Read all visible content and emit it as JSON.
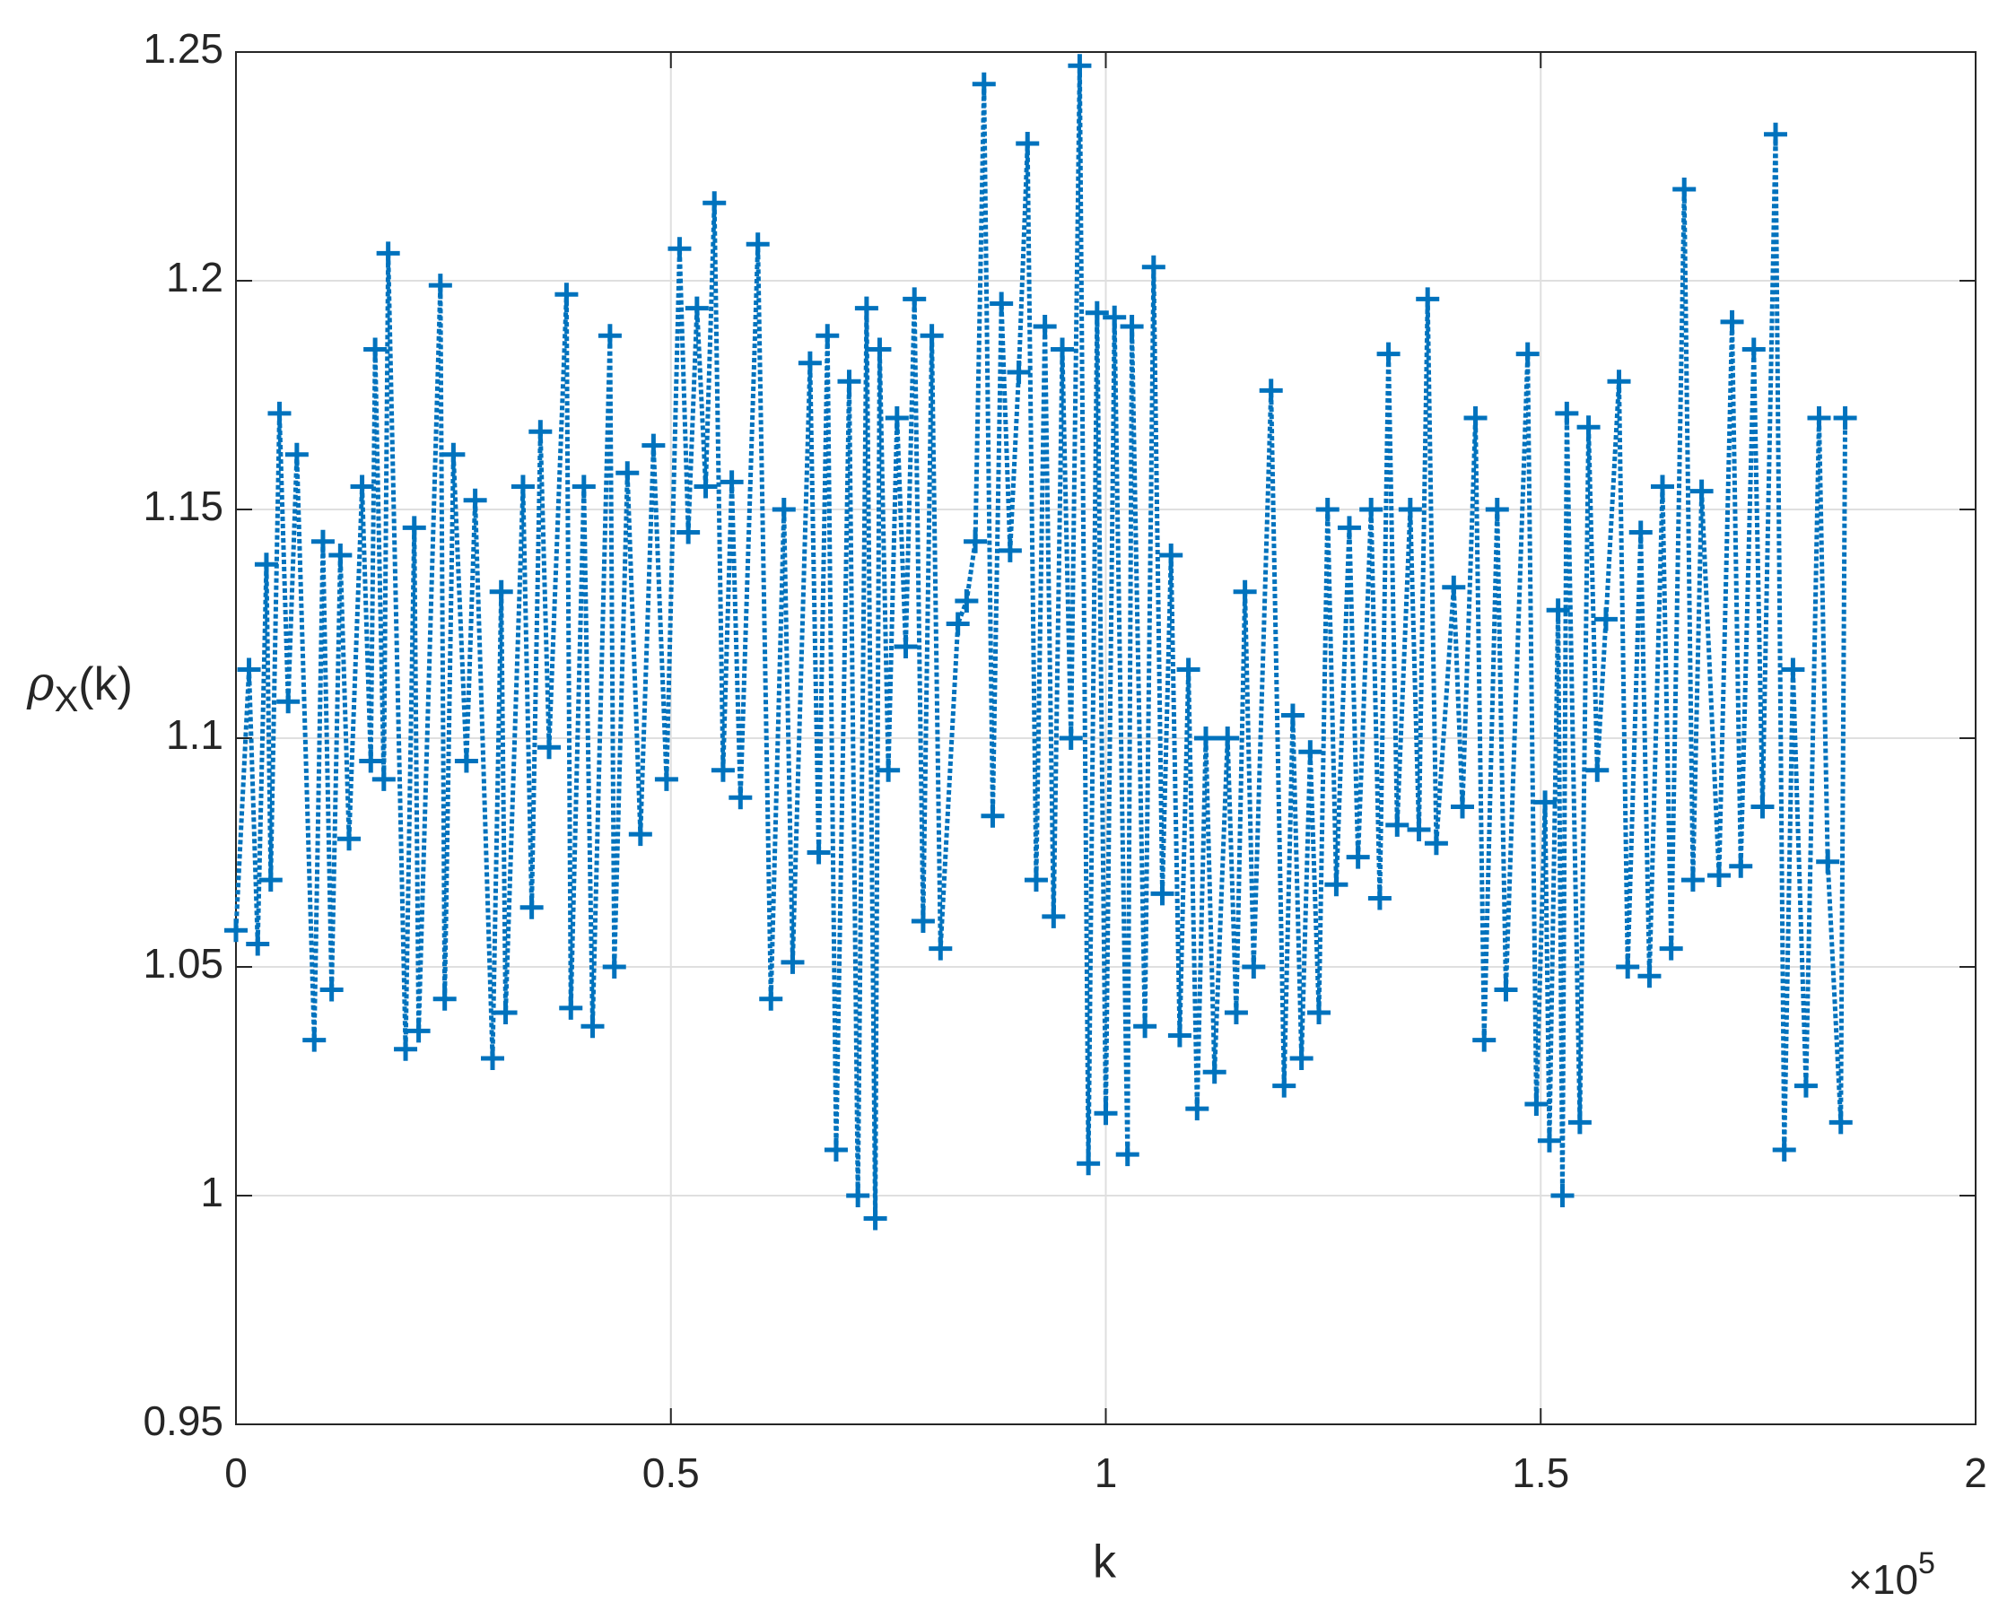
{
  "chart_data": {
    "type": "line",
    "ylabel": {
      "symbol": "ρ",
      "subscript": "X",
      "suffix": "(k)"
    },
    "xlabel": "k",
    "x_exponent": {
      "base": "×10",
      "power": "5"
    },
    "xlim": [
      0,
      200000
    ],
    "xticks": [
      {
        "value": 0,
        "label": "0"
      },
      {
        "value": 50000,
        "label": "0.5"
      },
      {
        "value": 100000,
        "label": "1"
      },
      {
        "value": 150000,
        "label": "1.5"
      },
      {
        "value": 200000,
        "label": "2"
      }
    ],
    "ylim": [
      0.95,
      1.25
    ],
    "yticks": [
      0.95,
      1,
      1.05,
      1.1,
      1.15,
      1.2,
      1.25
    ],
    "grid": true,
    "x": [
      0,
      1500,
      2500,
      3500,
      4000,
      5000,
      6000,
      7000,
      9000,
      10000,
      11000,
      12000,
      13000,
      14500,
      15500,
      16000,
      17000,
      17500,
      19500,
      20500,
      21000,
      23500,
      24000,
      25000,
      26500,
      27500,
      29500,
      30500,
      31000,
      33000,
      34000,
      35000,
      36000,
      38000,
      38500,
      40000,
      41000,
      43000,
      43500,
      45000,
      46500,
      48000,
      49500,
      51000,
      52000,
      53000,
      54000,
      55000,
      56000,
      57000,
      58000,
      60000,
      61500,
      63000,
      64000,
      66000,
      67000,
      68000,
      69000,
      70500,
      71500,
      72500,
      73500,
      74000,
      75000,
      76000,
      77000,
      78000,
      79000,
      80000,
      81000,
      83000,
      84000,
      85000,
      86000,
      87000,
      88000,
      89000,
      90000,
      91000,
      92000,
      93000,
      94000,
      95000,
      96000,
      97000,
      98000,
      99000,
      100000,
      101000,
      102500,
      103000,
      104500,
      105500,
      106500,
      107500,
      108500,
      109500,
      110500,
      111500,
      112500,
      114000,
      115000,
      116000,
      117000,
      119000,
      120500,
      121500,
      122500,
      123500,
      124500,
      125500,
      126500,
      128000,
      129000,
      130500,
      131500,
      132500,
      133500,
      135000,
      136000,
      137000,
      138000,
      140000,
      141000,
      142500,
      143500,
      145000,
      146000,
      148500,
      149500,
      150500,
      151000,
      152000,
      152500,
      153000,
      154500,
      155500,
      156500,
      157500,
      159000,
      160000,
      161500,
      162500,
      164000,
      165000,
      166500,
      167500,
      168500,
      170500,
      172000,
      173000,
      174500,
      175500,
      177000,
      178000,
      179000,
      180500,
      182000,
      183000,
      184500,
      185000
    ],
    "series": [
      {
        "name": "rho",
        "color": "#0072bd",
        "values": [
          1.058,
          1.115,
          1.055,
          1.138,
          1.069,
          1.171,
          1.108,
          1.162,
          1.034,
          1.143,
          1.045,
          1.14,
          1.078,
          1.155,
          1.095,
          1.185,
          1.091,
          1.206,
          1.032,
          1.146,
          1.036,
          1.199,
          1.043,
          1.162,
          1.095,
          1.152,
          1.03,
          1.132,
          1.04,
          1.155,
          1.063,
          1.167,
          1.098,
          1.197,
          1.041,
          1.155,
          1.037,
          1.188,
          1.05,
          1.158,
          1.079,
          1.164,
          1.091,
          1.207,
          1.145,
          1.194,
          1.155,
          1.217,
          1.093,
          1.156,
          1.087,
          1.208,
          1.043,
          1.15,
          1.051,
          1.182,
          1.075,
          1.188,
          1.01,
          1.178,
          1.0,
          1.194,
          0.995,
          1.185,
          1.093,
          1.17,
          1.12,
          1.196,
          1.06,
          1.188,
          1.054,
          1.125,
          1.13,
          1.143,
          1.243,
          1.083,
          1.195,
          1.141,
          1.18,
          1.23,
          1.069,
          1.19,
          1.061,
          1.185,
          1.1,
          1.247,
          1.007,
          1.193,
          1.018,
          1.192,
          1.009,
          1.19,
          1.037,
          1.203,
          1.066,
          1.14,
          1.035,
          1.115,
          1.019,
          1.1,
          1.027,
          1.1,
          1.04,
          1.132,
          1.05,
          1.176,
          1.024,
          1.105,
          1.03,
          1.097,
          1.04,
          1.15,
          1.068,
          1.146,
          1.074,
          1.15,
          1.065,
          1.184,
          1.081,
          1.15,
          1.08,
          1.196,
          1.077,
          1.133,
          1.085,
          1.17,
          1.034,
          1.15,
          1.045,
          1.184,
          1.02,
          1.086,
          1.012,
          1.128,
          1.0,
          1.171,
          1.016,
          1.168,
          1.093,
          1.126,
          1.178,
          1.05,
          1.145,
          1.048,
          1.155,
          1.054,
          1.22,
          1.069,
          1.154,
          1.07,
          1.191,
          1.072,
          1.185,
          1.085,
          1.232,
          1.01,
          1.115,
          1.024,
          1.17,
          1.073,
          1.016,
          1.17
        ]
      }
    ]
  }
}
